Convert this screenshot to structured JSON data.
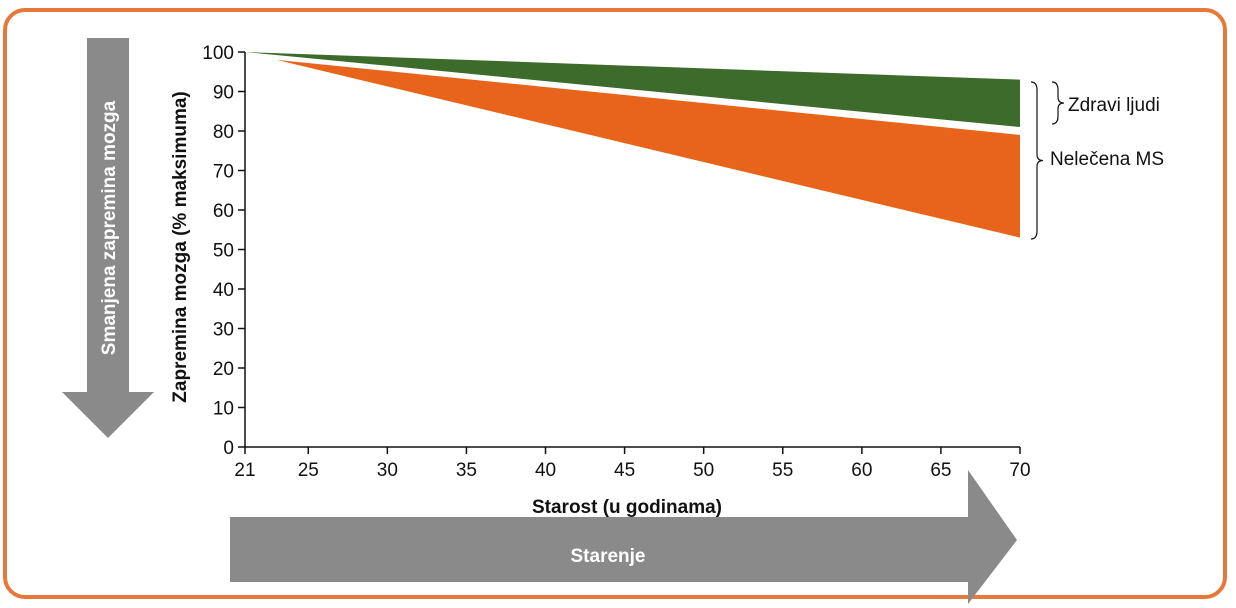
{
  "chart_data": {
    "type": "area",
    "xlabel": "Starost (u godinama)",
    "ylabel": "Zapremina mozga (% maksimuma)",
    "x_ticks": [
      "21",
      "25",
      "30",
      "35",
      "40",
      "45",
      "50",
      "55",
      "60",
      "65",
      "70"
    ],
    "y_ticks": [
      "0",
      "10",
      "20",
      "30",
      "40",
      "50",
      "60",
      "70",
      "80",
      "90",
      "100"
    ],
    "xlim": [
      21,
      70
    ],
    "ylim": [
      0,
      100
    ],
    "series": [
      {
        "name": "Zdravi ljudi",
        "color": "#3d6b2b",
        "upper": [
          [
            21,
            100
          ],
          [
            70,
            93
          ]
        ],
        "lower": [
          [
            21,
            100
          ],
          [
            70,
            81
          ]
        ]
      },
      {
        "name": "Nelečena MS",
        "color": "#e8641a",
        "upper": [
          [
            23,
            98
          ],
          [
            70,
            79
          ]
        ],
        "lower": [
          [
            23,
            98
          ],
          [
            70,
            53
          ]
        ]
      }
    ],
    "arrows": {
      "vertical_label": "Smanjena zapremina mozga",
      "horizontal_label": "Starenje"
    },
    "grid": false
  },
  "colors": {
    "frame_border": "#e8783a",
    "arrow_fill": "#8a8a8a"
  }
}
